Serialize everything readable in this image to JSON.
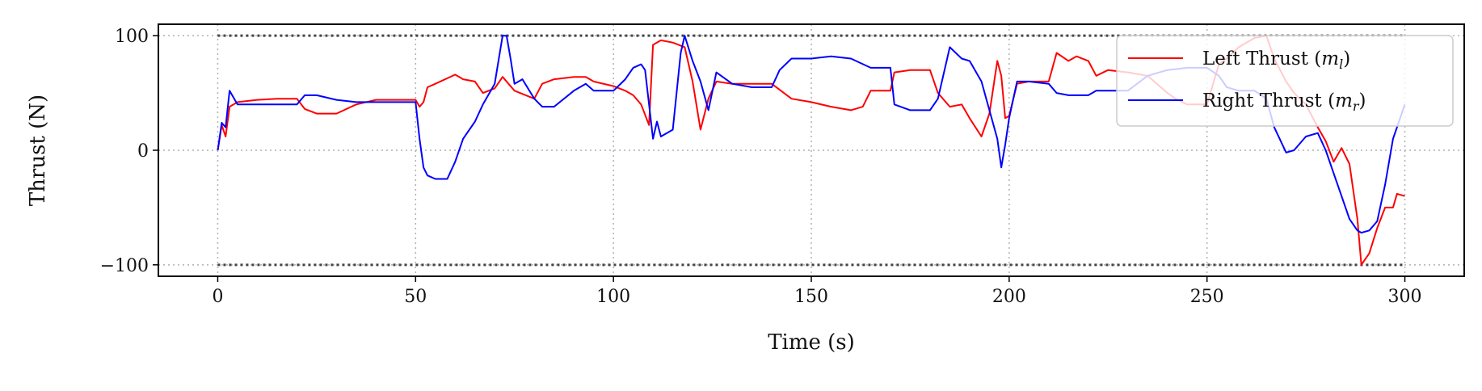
{
  "chart_data": {
    "type": "line",
    "title": "",
    "xlabel": "Time (s)",
    "ylabel": "Thrust (N)",
    "xlim": [
      -15,
      315
    ],
    "ylim": [
      -110,
      110
    ],
    "xticks": [
      0,
      50,
      100,
      150,
      200,
      250,
      300
    ],
    "xtick_labels": [
      "0",
      "50",
      "100",
      "150",
      "200",
      "250",
      "300"
    ],
    "yticks": [
      -100,
      0,
      100
    ],
    "ytick_labels": [
      "−100",
      "0",
      "100"
    ],
    "grid": true,
    "legend_placement": "top-right",
    "reference_lines": [
      {
        "name": "upper-thrust-limit",
        "y": 100,
        "style": "dotted",
        "color": "#444444"
      },
      {
        "name": "lower-thrust-limit",
        "y": -100,
        "style": "dotted",
        "color": "#444444"
      }
    ],
    "series": [
      {
        "name": "Left Thrust (m_l)",
        "legend_main": "Left Thrust (",
        "legend_var": "m",
        "legend_sub": "l",
        "legend_close": ")",
        "color": "#ff0000",
        "x": [
          0,
          1,
          2,
          3,
          5,
          10,
          15,
          20,
          22,
          25,
          30,
          35,
          40,
          45,
          50,
          51,
          52,
          53,
          55,
          60,
          62,
          65,
          67,
          70,
          72,
          75,
          80,
          82,
          85,
          90,
          93,
          95,
          100,
          103,
          105,
          107,
          109,
          110,
          112,
          115,
          118,
          120,
          122,
          124,
          126,
          130,
          135,
          140,
          145,
          150,
          155,
          160,
          163,
          165,
          170,
          171,
          175,
          180,
          182,
          185,
          188,
          190,
          193,
          195,
          197,
          198,
          199,
          200,
          202,
          205,
          210,
          212,
          215,
          217,
          220,
          222,
          225,
          230,
          235,
          240,
          242,
          245,
          250,
          253,
          255,
          258,
          262,
          265,
          267,
          270,
          272,
          275,
          278,
          280,
          282,
          284,
          286,
          288,
          289,
          291,
          293,
          295,
          297,
          298,
          300
        ],
        "y": [
          0,
          22,
          12,
          38,
          42,
          44,
          45,
          45,
          36,
          32,
          32,
          40,
          44,
          44,
          44,
          38,
          42,
          55,
          58,
          66,
          62,
          60,
          50,
          54,
          64,
          52,
          45,
          58,
          62,
          64,
          64,
          60,
          56,
          52,
          48,
          40,
          22,
          92,
          96,
          94,
          90,
          60,
          18,
          45,
          60,
          58,
          58,
          58,
          45,
          42,
          38,
          35,
          38,
          52,
          52,
          68,
          70,
          70,
          50,
          38,
          40,
          28,
          12,
          32,
          78,
          65,
          28,
          30,
          58,
          60,
          60,
          85,
          78,
          82,
          78,
          65,
          70,
          68,
          65,
          50,
          45,
          40,
          40,
          75,
          80,
          90,
          98,
          100,
          80,
          60,
          50,
          40,
          20,
          8,
          -10,
          2,
          -12,
          -60,
          -100,
          -90,
          -68,
          -50,
          -50,
          -38,
          -40
        ]
      },
      {
        "name": "Right Thrust (m_r)",
        "legend_main": "Right Thrust (",
        "legend_var": "m",
        "legend_sub": "r",
        "legend_close": ")",
        "color": "#0000ff",
        "x": [
          0,
          1,
          2,
          3,
          5,
          10,
          15,
          20,
          22,
          25,
          30,
          35,
          40,
          45,
          50,
          51,
          52,
          53,
          55,
          58,
          60,
          62,
          65,
          67,
          70,
          72,
          73,
          74,
          75,
          77,
          80,
          82,
          85,
          90,
          93,
          95,
          98,
          100,
          103,
          105,
          107,
          108,
          109,
          110,
          111,
          112,
          115,
          117,
          118,
          120,
          122,
          124,
          126,
          130,
          135,
          140,
          142,
          145,
          150,
          155,
          160,
          165,
          170,
          171,
          175,
          180,
          182,
          185,
          188,
          190,
          193,
          195,
          197,
          198,
          199,
          200,
          202,
          205,
          210,
          212,
          215,
          220,
          222,
          225,
          230,
          235,
          240,
          245,
          250,
          253,
          255,
          258,
          262,
          265,
          267,
          270,
          272,
          275,
          278,
          280,
          282,
          284,
          286,
          288,
          289,
          291,
          293,
          295,
          297,
          300
        ],
        "y": [
          0,
          24,
          20,
          52,
          40,
          40,
          40,
          40,
          48,
          48,
          44,
          42,
          42,
          42,
          42,
          10,
          -15,
          -22,
          -25,
          -25,
          -10,
          10,
          25,
          40,
          58,
          100,
          100,
          80,
          58,
          62,
          45,
          38,
          38,
          52,
          58,
          52,
          52,
          52,
          62,
          72,
          75,
          70,
          40,
          10,
          25,
          12,
          18,
          85,
          100,
          78,
          60,
          35,
          68,
          58,
          55,
          55,
          70,
          80,
          80,
          82,
          80,
          72,
          72,
          40,
          35,
          35,
          45,
          90,
          80,
          78,
          60,
          35,
          10,
          -15,
          5,
          28,
          60,
          60,
          58,
          50,
          48,
          48,
          52,
          52,
          52,
          65,
          70,
          72,
          72,
          65,
          55,
          52,
          52,
          45,
          20,
          -2,
          0,
          12,
          15,
          0,
          -20,
          -40,
          -60,
          -70,
          -72,
          -70,
          -62,
          -30,
          10,
          40
        ]
      }
    ]
  }
}
